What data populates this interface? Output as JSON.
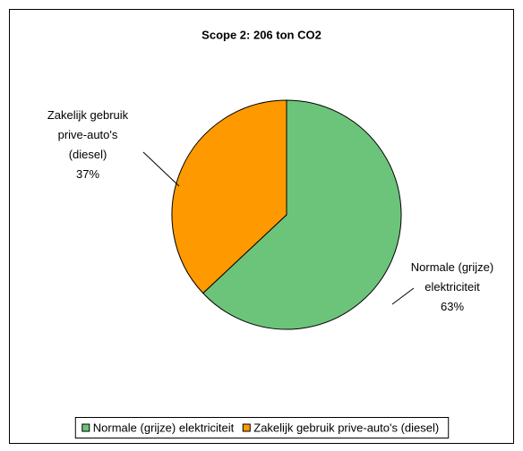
{
  "chart_data": {
    "type": "pie",
    "title": "Scope 2: 206 ton CO2",
    "categories": [
      "Normale (grijze) elektriciteit",
      "Zakelijk gebruik prive-auto's (diesel)"
    ],
    "values": [
      63,
      37
    ],
    "value_labels": [
      "63%",
      "37%"
    ],
    "colors": [
      "#6cc47a",
      "#ff9900"
    ],
    "legend": "bottom"
  }
}
